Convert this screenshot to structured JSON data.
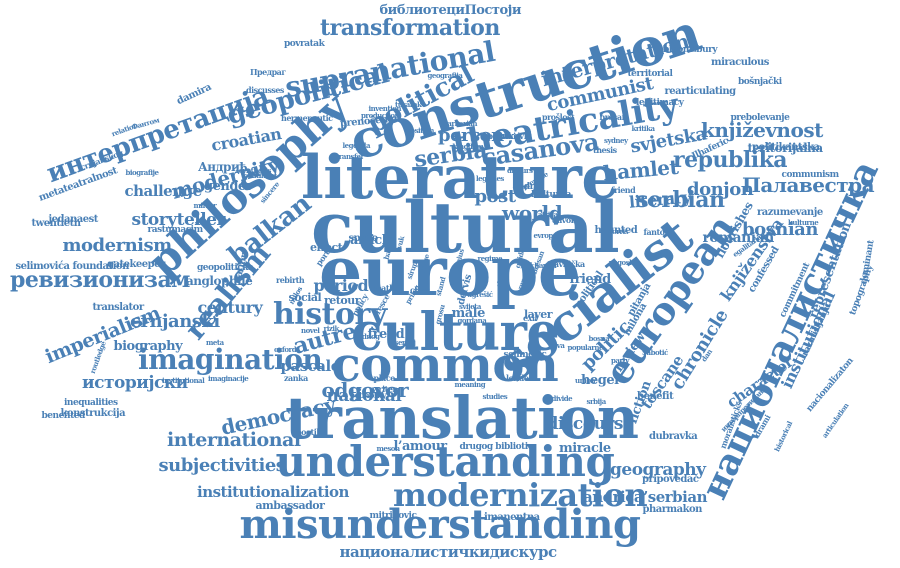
{
  "palette": {
    "word_color": "#4a80b6",
    "background": "#ffffff"
  },
  "words": [
    {
      "text": "europe",
      "weight": 72
    },
    {
      "text": "cultural",
      "weight": 70
    },
    {
      "text": "literature",
      "weight": 64
    },
    {
      "text": "translation",
      "weight": 60
    },
    {
      "text": "construction",
      "weight": 56
    },
    {
      "text": "culture",
      "weight": 54
    },
    {
      "text": "socialist",
      "weight": 54
    },
    {
      "text": "common",
      "weight": 50
    },
    {
      "text": "understanding",
      "weight": 44
    },
    {
      "text": "misunderstanding",
      "weight": 40
    },
    {
      "text": "philosophy",
      "weight": 44
    },
    {
      "text": "european",
      "weight": 40
    },
    {
      "text": "националистичка",
      "weight": 38
    },
    {
      "text": "theatricality",
      "weight": 36
    },
    {
      "text": "modernization",
      "weight": 34
    },
    {
      "text": "imagination",
      "weight": 30
    },
    {
      "text": "history",
      "weight": 30
    },
    {
      "text": "supranational",
      "weight": 28
    },
    {
      "text": "интерпретација",
      "weight": 28
    },
    {
      "text": "geopolitical",
      "weight": 28
    },
    {
      "text": "realism",
      "weight": 30
    },
    {
      "text": "balkan",
      "weight": 28
    },
    {
      "text": "political",
      "weight": 26
    },
    {
      "text": "casanova",
      "weight": 26
    },
    {
      "text": "serbia",
      "weight": 24
    },
    {
      "text": "ревизионизам",
      "weight": 24
    },
    {
      "text": "transformation",
      "weight": 22
    },
    {
      "text": "interpretation",
      "weight": 22
    },
    {
      "text": "communist",
      "weight": 20
    },
    {
      "text": "književnost",
      "weight": 20
    },
    {
      "text": "republika",
      "weight": 22
    },
    {
      "text": "serbian",
      "weight": 22
    },
    {
      "text": "hamlet",
      "weight": 20
    },
    {
      "text": "Палавестра",
      "weight": 20
    },
    {
      "text": "donjon",
      "weight": 20
    },
    {
      "text": "literary",
      "weight": 18
    },
    {
      "text": "bosnian",
      "weight": 18
    },
    {
      "text": "world",
      "weight": 20
    },
    {
      "text": "post",
      "weight": 20
    },
    {
      "text": "person",
      "weight": 18
    },
    {
      "text": "svjetska",
      "weight": 18
    },
    {
      "text": "modernity",
      "weight": 20
    },
    {
      "text": "croatian",
      "weight": 18
    },
    {
      "text": "storyteller",
      "weight": 18
    },
    {
      "text": "modernism",
      "weight": 18
    },
    {
      "text": "imperialism",
      "weight": 20
    },
    {
      "text": "crnjanski",
      "weight": 20
    },
    {
      "text": "period",
      "weight": 18
    },
    {
      "text": "century",
      "weight": 18
    },
    {
      "text": "autre",
      "weight": 24
    },
    {
      "text": "odgovor",
      "weight": 22
    },
    {
      "text": "democracy",
      "weight": 22
    },
    {
      "text": "international",
      "weight": 20
    },
    {
      "text": "subjectivities",
      "weight": 20
    },
    {
      "text": "institutionalization",
      "weight": 16
    },
    {
      "text": "историјски",
      "weight": 18
    },
    {
      "text": "national",
      "weight": 18
    },
    {
      "text": "politic",
      "weight": 20
    },
    {
      "text": "chronicle",
      "weight": 20
    },
    {
      "text": "character",
      "weight": 16
    },
    {
      "text": "institutional",
      "weight": 18
    },
    {
      "text": "representation",
      "weight": 14
    },
    {
      "text": "discourse",
      "weight": 18
    },
    {
      "text": "geography",
      "weight": 18
    },
    {
      "text": "andrića’serbian",
      "weight": 16
    },
    {
      "text": "националистичкидискурс",
      "weight": 16
    },
    {
      "text": "pascale",
      "weight": 16
    },
    {
      "text": "biography",
      "weight": 14
    },
    {
      "text": "challenge",
      "weight": 16
    },
    {
      "text": "gender",
      "weight": 14
    },
    {
      "text": "библиотециПостоји",
      "weight": 14
    },
    {
      "text": "knjiženstva",
      "weight": 18
    },
    {
      "text": "toscane",
      "weight": 16
    },
    {
      "text": "review",
      "weight": 14
    },
    {
      "text": "fiction",
      "weight": 14
    },
    {
      "text": "miracle",
      "weight": 14
    },
    {
      "text": "hegel",
      "weight": 14
    },
    {
      "text": "freud",
      "weight": 14
    },
    {
      "text": "male",
      "weight": 14
    },
    {
      "text": "layer",
      "weight": 12
    },
    {
      "text": "friend",
      "weight": 14
    },
    {
      "text": "article",
      "weight": 14
    },
    {
      "text": "effect",
      "weight": 12
    },
    {
      "text": "social",
      "weight": 12
    },
    {
      "text": "retour",
      "weight": 12
    },
    {
      "text": "l’amour",
      "weight": 14
    },
    {
      "text": "drugog bibliotic",
      "weight": 10
    },
    {
      "text": "ambassador",
      "weight": 12
    },
    {
      "text": "mitrinovic",
      "weight": 9
    },
    {
      "text": "imanentna",
      "weight": 10
    },
    {
      "text": "pharmakon",
      "weight": 10
    },
    {
      "text": "pripovedač",
      "weight": 10
    },
    {
      "text": "dubravka",
      "weight": 10
    },
    {
      "text": "benefit",
      "weight": 10
    },
    {
      "text": "commitment",
      "weight": 9
    },
    {
      "text": "razmišljanju",
      "weight": 10
    },
    {
      "text": "nacionalizaton",
      "weight": 10
    },
    {
      "text": "konstrukcija",
      "weight": 10
    },
    {
      "text": "inequalities",
      "weight": 10
    },
    {
      "text": "benefited",
      "weight": 9
    },
    {
      "text": "translator",
      "weight": 9
    },
    {
      "text": "selimovića foundation",
      "weight": 10
    },
    {
      "text": "gatekeeper",
      "weight": 10
    },
    {
      "text": "twentieth",
      "weight": 10
    },
    {
      "text": "rastumacim",
      "weight": 10
    },
    {
      "text": "jedanaest",
      "weight": 9
    },
    {
      "text": "anglophile",
      "weight": 10
    },
    {
      "text": "geopolitička",
      "weight": 10
    },
    {
      "text": "damira",
      "weight": 12
    },
    {
      "text": "povratak",
      "weight": 9
    },
    {
      "text": "metateatralnost",
      "weight": 10
    },
    {
      "text": "crnjanskog",
      "weight": 9
    },
    {
      "text": "bloomsbury",
      "weight": 10
    },
    {
      "text": "territorial",
      "weight": 9
    },
    {
      "text": "miraculous",
      "weight": 9
    },
    {
      "text": "bošnjački",
      "weight": 9
    },
    {
      "text": "rearticulating",
      "weight": 10
    },
    {
      "text": "legitimacy",
      "weight": 9
    },
    {
      "text": "prebolevanje",
      "weight": 10
    },
    {
      "text": "teritorijalna",
      "weight": 9
    },
    {
      "text": "politikantska",
      "weight": 9
    },
    {
      "text": "communism",
      "weight": 12
    },
    {
      "text": "razumevanje",
      "weight": 10
    },
    {
      "text": "confessed",
      "weight": 9
    },
    {
      "text": "flourishes",
      "weight": 10
    },
    {
      "text": "romanian",
      "weight": 10
    },
    {
      "text": "Андрић",
      "weight": 12
    },
    {
      "text": "Предраг",
      "weight": 14
    },
    {
      "text": "discusses",
      "weight": 12
    },
    {
      "text": "hermeneutic",
      "weight": 8
    },
    {
      "text": "prenošenje",
      "weight": 8
    },
    {
      "text": "prošlost",
      "weight": 8
    },
    {
      "text": "bresan",
      "weight": 10
    },
    {
      "text": "crnković",
      "weight": 8
    },
    {
      "text": "petrović",
      "weight": 8
    },
    {
      "text": "thesis",
      "weight": 9
    },
    {
      "text": "friend",
      "weight": 8
    },
    {
      "text": "haunted",
      "weight": 8
    },
    {
      "text": "fantom",
      "weight": 8
    },
    {
      "text": "andrić",
      "weight": 10
    },
    {
      "text": "kulturna",
      "weight": 8
    },
    {
      "text": "space",
      "weight": 9
    },
    {
      "text": "death",
      "weight": 9
    },
    {
      "text": "class",
      "weight": 10
    },
    {
      "text": "place",
      "weight": 8
    },
    {
      "text": "writer",
      "weight": 8
    },
    {
      "text": "economy",
      "weight": 8
    },
    {
      "text": "meaning",
      "weight": 8
    },
    {
      "text": "studies",
      "weight": 8
    },
    {
      "text": "zanka",
      "weight": 7
    },
    {
      "text": "meson",
      "weight": 7
    },
    {
      "text": "poetika",
      "weight": 8
    },
    {
      "text": "popularne",
      "weight": 7
    },
    {
      "text": "selimovic",
      "weight": 8
    },
    {
      "text": "london",
      "weight": 7
    },
    {
      "text": "union",
      "weight": 9
    },
    {
      "text": "Šabotić",
      "weight": 8
    },
    {
      "text": "pitanja",
      "weight": 7
    },
    {
      "text": "milona",
      "weight": 7
    },
    {
      "text": "political",
      "weight": 10
    },
    {
      "text": "policy",
      "weight": 10
    },
    {
      "text": "meta",
      "weight": 10
    },
    {
      "text": "mirror",
      "weight": 8
    },
    {
      "text": "continent",
      "weight": 7
    },
    {
      "text": "synthesis",
      "weight": 7
    },
    {
      "text": "relation",
      "weight": 7
    },
    {
      "text": "Фантом",
      "weight": 7
    },
    {
      "text": "biografije",
      "weight": 7
    },
    {
      "text": "routledge",
      "weight": 7
    },
    {
      "text": "institutional",
      "weight": 7
    },
    {
      "text": "imaginacije",
      "weight": 7
    },
    {
      "text": "egalitarian",
      "weight": 7
    },
    {
      "text": "kulturne",
      "weight": 7
    },
    {
      "text": "Ilhaferic",
      "weight": 7
    },
    {
      "text": "davoru",
      "weight": 7
    },
    {
      "text": "travnička",
      "weight": 9
    },
    {
      "text": "exil",
      "weight": 8
    },
    {
      "text": "party",
      "weight": 8
    },
    {
      "text": "dan",
      "weight": 8
    },
    {
      "text": "drami",
      "weight": 7
    },
    {
      "text": "historical",
      "weight": 7
    },
    {
      "text": "articulation",
      "weight": 8
    },
    {
      "text": "topography",
      "weight": 7
    },
    {
      "text": "dominant",
      "weight": 7
    },
    {
      "text": "moralisticks",
      "weight": 9
    },
    {
      "text": "интерпретирање",
      "weight": 9
    },
    {
      "text": "geografija",
      "weight": 8
    },
    {
      "text": "invention",
      "weight": 7
    },
    {
      "text": "tusarak",
      "weight": 7
    },
    {
      "text": "production",
      "weight": 7
    },
    {
      "text": "barbarian",
      "weight": 7
    },
    {
      "text": "kingdom",
      "weight": 7
    },
    {
      "text": "position",
      "weight": 7
    },
    {
      "text": "legenda",
      "weight": 7
    },
    {
      "text": "transfer",
      "weight": 7
    },
    {
      "text": "diskurs",
      "weight": 7
    },
    {
      "text": "kritika",
      "weight": 7
    },
    {
      "text": "sydney",
      "weight": 7
    },
    {
      "text": "premise",
      "weight": 7
    },
    {
      "text": "legacies",
      "weight": 7
    },
    {
      "text": "prostora",
      "weight": 7
    },
    {
      "text": "bosna",
      "weight": 7
    },
    {
      "text": "nova",
      "weight": 7
    },
    {
      "text": "srbija",
      "weight": 7
    },
    {
      "text": "divide",
      "weight": 7
    },
    {
      "text": "norris",
      "weight": 7
    },
    {
      "text": "yugoslav",
      "weight": 7
    },
    {
      "text": "chapter",
      "weight": 7
    },
    {
      "text": "bresan",
      "weight": 7
    },
    {
      "text": "evrope",
      "weight": 7
    },
    {
      "text": "africa",
      "weight": 7
    },
    {
      "text": "gordana",
      "weight": 7
    },
    {
      "text": "svijeta",
      "weight": 7
    },
    {
      "text": "sincere",
      "weight": 7
    },
    {
      "text": "nation",
      "weight": 7
    },
    {
      "text": "port",
      "weight": 7
    },
    {
      "text": "rebirth",
      "weight": 7
    },
    {
      "text": "dervis",
      "weight": 9
    },
    {
      "text": "regime",
      "weight": 8
    },
    {
      "text": "ugrešić",
      "weight": 8
    },
    {
      "text": "milos",
      "weight": 9
    },
    {
      "text": "cresce",
      "weight": 7
    },
    {
      "text": "vuk",
      "weight": 7
    },
    {
      "text": "oxford",
      "weight": 7
    },
    {
      "text": "novel",
      "weight": 8
    },
    {
      "text": "rizik",
      "weight": 7
    },
    {
      "text": "balance",
      "weight": 7
    },
    {
      "text": "genius",
      "weight": 7
    },
    {
      "text": "jednog",
      "weight": 7
    },
    {
      "text": "sergej",
      "weight": 7
    },
    {
      "text": "grosu",
      "weight": 7
    },
    {
      "text": "prilog",
      "weight": 7
    },
    {
      "text": "guide",
      "weight": 7
    },
    {
      "text": "stav",
      "weight": 7
    },
    {
      "text": "stand",
      "weight": 7
    },
    {
      "text": "sirup",
      "weight": 7
    },
    {
      "text": "druge",
      "weight": 7
    },
    {
      "text": "marx",
      "weight": 7
    },
    {
      "text": "vera",
      "weight": 7
    },
    {
      "text": "mit",
      "weight": 7
    }
  ]
}
